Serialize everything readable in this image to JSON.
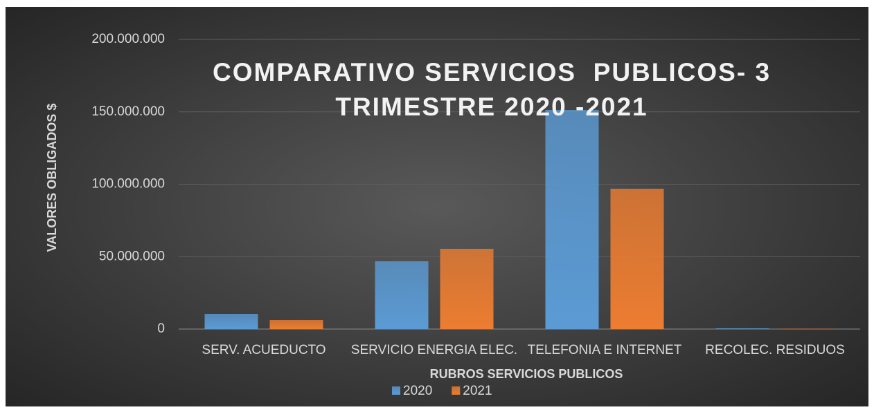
{
  "chart_data": {
    "type": "bar",
    "title": "COMPARATIVO SERVICIOS  PUBLICOS- 3 TRIMESTRE 2020 -2021",
    "x_label": "RUBROS SERVICIOS PUBLICOS",
    "y_label": "VALORES OBLIGADOS $",
    "categories": [
      "SERV. ACUEDUCTO",
      "SERVICIO ENERGIA ELEC.",
      "TELEFONIA E INTERNET",
      "RECOLEC. RESIDUOS"
    ],
    "series": [
      {
        "name": "2020",
        "color": "#5b9bd5",
        "values": [
          10500000,
          46800000,
          151300000,
          500000
        ]
      },
      {
        "name": "2021",
        "color": "#ed7d31",
        "values": [
          6200000,
          55400000,
          96900000,
          200000
        ]
      }
    ],
    "ylim": [
      0,
      200000000
    ],
    "yticks": [
      0,
      {
        "value": 50000000,
        "label": "50.000.000"
      },
      {
        "value": 100000000,
        "label": "100.000.000"
      },
      {
        "value": 150000000,
        "label": "150.000.000"
      },
      {
        "value": 200000000,
        "label": "200.000.000"
      }
    ],
    "grid": true,
    "legend": "bottom"
  }
}
